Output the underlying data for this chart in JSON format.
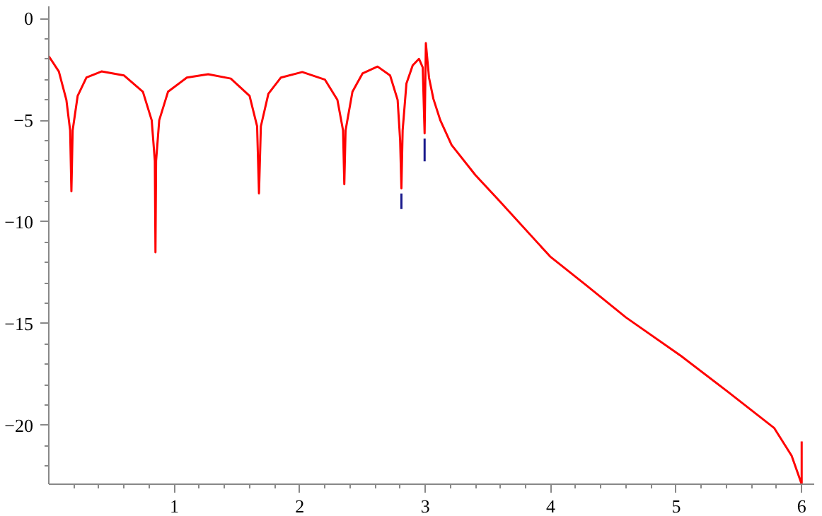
{
  "chart_data": {
    "type": "line",
    "xlim": [
      0,
      6.1
    ],
    "ylim": [
      -22.9,
      0.6
    ],
    "grid": false,
    "marker": "none",
    "line_style": "solid",
    "xticks": [
      {
        "value": 0.2,
        "label": null
      },
      {
        "value": 0.4,
        "label": null
      },
      {
        "value": 0.6,
        "label": null
      },
      {
        "value": 0.8,
        "label": null
      },
      1,
      {
        "value": 1.2,
        "label": null
      },
      {
        "value": 1.4,
        "label": null
      },
      {
        "value": 1.6,
        "label": null
      },
      {
        "value": 1.8,
        "label": null
      },
      2,
      {
        "value": 2.2,
        "label": null
      },
      {
        "value": 2.4,
        "label": null
      },
      {
        "value": 2.6,
        "label": null
      },
      {
        "value": 2.8,
        "label": null
      },
      3,
      {
        "value": 3.2,
        "label": null
      },
      {
        "value": 3.4,
        "label": null
      },
      {
        "value": 3.6,
        "label": null
      },
      {
        "value": 3.8,
        "label": null
      },
      4,
      {
        "value": 4.2,
        "label": null
      },
      {
        "value": 4.4,
        "label": null
      },
      {
        "value": 4.6,
        "label": null
      },
      {
        "value": 4.8,
        "label": null
      },
      5,
      {
        "value": 5.2,
        "label": null
      },
      {
        "value": 5.4,
        "label": null
      },
      {
        "value": 5.6,
        "label": null
      },
      {
        "value": 5.8,
        "label": null
      },
      6
    ],
    "yticks": [
      {
        "value": -22,
        "label": null
      },
      {
        "value": -21,
        "label": null
      },
      {
        "value": -20,
        "label": "−20"
      },
      {
        "value": -19,
        "label": null
      },
      {
        "value": -18,
        "label": null
      },
      {
        "value": -17,
        "label": null
      },
      {
        "value": -16,
        "label": null
      },
      {
        "value": -15,
        "label": "−15"
      },
      {
        "value": -14,
        "label": null
      },
      {
        "value": -13,
        "label": null
      },
      {
        "value": -12,
        "label": null
      },
      {
        "value": -11,
        "label": null
      },
      {
        "value": -10,
        "label": "−10"
      },
      {
        "value": -9,
        "label": null
      },
      {
        "value": -8,
        "label": null
      },
      {
        "value": -7,
        "label": null
      },
      {
        "value": -6,
        "label": null
      },
      {
        "value": -5,
        "label": "−5"
      },
      {
        "value": -4,
        "label": null
      },
      {
        "value": -3,
        "label": null
      },
      {
        "value": -2,
        "label": null
      },
      {
        "value": -1,
        "label": null
      },
      0
    ],
    "series": [
      {
        "color": "#1a1a8c",
        "x": [
          2.81,
          2.81,
          2.9,
          2.995,
          2.995
        ],
        "values": [
          -8.6,
          -9.37,
          null,
          -5.9,
          -7.02
        ]
      },
      {
        "color": "#ff0000",
        "x": [
          0,
          0.08,
          0.14,
          0.17,
          0.18,
          0.19,
          0.23,
          0.3,
          0.42,
          0.6,
          0.75,
          0.82,
          0.845,
          0.85,
          0.855,
          0.88,
          0.95,
          1.1,
          1.27,
          1.45,
          1.6,
          1.66,
          1.675,
          1.69,
          1.75,
          1.85,
          2.02,
          2.2,
          2.3,
          2.345,
          2.355,
          2.365,
          2.42,
          2.5,
          2.62,
          2.72,
          2.78,
          2.8,
          2.81,
          2.82,
          2.85,
          2.9,
          2.95,
          2.98,
          2.995,
          3.005,
          3.03,
          3.065,
          3.12,
          3.21,
          3.4,
          3.59,
          3.995,
          4.28,
          4.6,
          5.04,
          5.4,
          5.78,
          5.92,
          6.0,
          6.0
        ],
        "values": [
          -1.85,
          -2.6,
          -4.0,
          -5.5,
          -8.5,
          -5.5,
          -3.8,
          -2.9,
          -2.6,
          -2.8,
          -3.6,
          -5.0,
          -7,
          -11.5,
          -7,
          -5.0,
          -3.6,
          -2.9,
          -2.74,
          -2.95,
          -3.8,
          -5.3,
          -8.6,
          -5.3,
          -3.7,
          -2.9,
          -2.63,
          -3.0,
          -4.0,
          -5.5,
          -8.15,
          -5.5,
          -3.6,
          -2.7,
          -2.36,
          -2.8,
          -4.0,
          -6.0,
          -8.35,
          -5.5,
          -3.2,
          -2.3,
          -1.98,
          -2.4,
          -5.65,
          -1.21,
          -2.9,
          -3.95,
          -5.0,
          -6.22,
          -7.7,
          -8.96,
          -11.7,
          -13.1,
          -14.7,
          -16.6,
          -18.3,
          -20.13,
          -21.5,
          -22.9,
          -20.8
        ]
      }
    ]
  }
}
